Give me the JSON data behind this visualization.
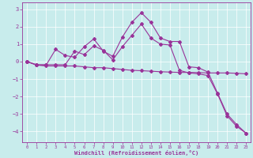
{
  "xlabel": "Windchill (Refroidissement éolien,°C)",
  "background_color": "#c8ecec",
  "line_color": "#993399",
  "xlim": [
    -0.5,
    23.5
  ],
  "ylim": [
    -4.6,
    3.4
  ],
  "yticks": [
    -4,
    -3,
    -2,
    -1,
    0,
    1,
    2,
    3
  ],
  "xticks": [
    0,
    1,
    2,
    3,
    4,
    5,
    6,
    7,
    8,
    9,
    10,
    11,
    12,
    13,
    14,
    15,
    16,
    17,
    18,
    19,
    20,
    21,
    22,
    23
  ],
  "series": [
    {
      "x": [
        0,
        1,
        2,
        3,
        4,
        5,
        6,
        7,
        8,
        9,
        10,
        11,
        12,
        13,
        14,
        15,
        16,
        17,
        18,
        19,
        20,
        21,
        22,
        23
      ],
      "y": [
        0.0,
        -0.2,
        -0.25,
        -0.25,
        -0.25,
        -0.25,
        -0.3,
        -0.35,
        -0.35,
        -0.4,
        -0.45,
        -0.5,
        -0.52,
        -0.55,
        -0.58,
        -0.6,
        -0.62,
        -0.62,
        -0.63,
        -0.65,
        -0.65,
        -0.65,
        -0.67,
        -0.7
      ]
    },
    {
      "x": [
        0,
        1,
        2,
        3,
        4,
        5,
        6,
        7,
        8,
        9,
        10,
        11,
        12,
        13,
        14,
        15,
        16,
        17,
        18,
        19,
        20,
        21,
        22,
        23
      ],
      "y": [
        0.0,
        -0.2,
        -0.2,
        0.7,
        0.35,
        0.25,
        0.85,
        1.3,
        0.6,
        0.3,
        1.4,
        2.25,
        2.8,
        2.25,
        1.35,
        1.15,
        1.15,
        -0.3,
        -0.35,
        -0.6,
        -1.8,
        -3.0,
        -3.6,
        -4.1
      ]
    },
    {
      "x": [
        0,
        1,
        2,
        3,
        4,
        5,
        6,
        7,
        8,
        9,
        10,
        11,
        12,
        13,
        14,
        15,
        16,
        17,
        18,
        19,
        20,
        21,
        22,
        23
      ],
      "y": [
        0.0,
        -0.18,
        -0.18,
        -0.18,
        -0.18,
        0.6,
        0.4,
        0.9,
        0.65,
        0.1,
        0.85,
        1.5,
        2.15,
        1.35,
        1.0,
        0.95,
        -0.5,
        -0.65,
        -0.7,
        -0.8,
        -1.85,
        -3.1,
        -3.7,
        -4.1
      ]
    }
  ]
}
